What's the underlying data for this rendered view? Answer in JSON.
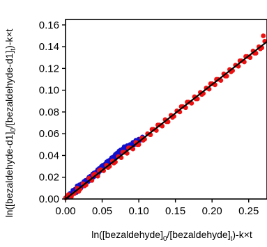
{
  "chart_data": {
    "type": "scatter",
    "title": "",
    "xlabel_parts": [
      "ln([bezaldehyde]",
      "0",
      "/[bezaldehyde]",
      "t",
      ")-k×t"
    ],
    "ylabel_parts": [
      "ln([bezaldehyde-d1]",
      "0",
      "/[bezaldehyde-d1]",
      "t",
      ")-k×t"
    ],
    "xlim": [
      0,
      0.275
    ],
    "ylim": [
      0,
      0.165
    ],
    "x_ticks": [
      0.0,
      0.05,
      0.1,
      0.15,
      0.2,
      0.25
    ],
    "x_tick_labels": [
      "0.00",
      "0.05",
      "0.10",
      "0.15",
      "0.20",
      "0.25"
    ],
    "y_ticks": [
      0.0,
      0.02,
      0.04,
      0.06,
      0.08,
      0.1,
      0.12,
      0.14,
      0.16
    ],
    "y_tick_labels": [
      "0.00",
      "0.02",
      "0.04",
      "0.06",
      "0.08",
      "0.10",
      "0.12",
      "0.14",
      "0.16"
    ],
    "grid": false,
    "fit_line": {
      "slope": 0.526,
      "intercept": 0.0,
      "color": "#000000"
    },
    "series": [
      {
        "color": "#1010cc",
        "x": [
          0.003,
          0.006,
          0.008,
          0.01,
          0.012,
          0.013,
          0.015,
          0.016,
          0.018,
          0.019,
          0.02,
          0.021,
          0.022,
          0.024,
          0.025,
          0.026,
          0.027,
          0.028,
          0.03,
          0.031,
          0.032,
          0.033,
          0.034,
          0.036,
          0.037,
          0.038,
          0.039,
          0.04,
          0.042,
          0.043,
          0.044,
          0.045,
          0.046,
          0.048,
          0.049,
          0.05,
          0.051,
          0.052,
          0.054,
          0.055,
          0.056,
          0.057,
          0.058,
          0.06,
          0.061,
          0.062,
          0.063,
          0.064,
          0.066,
          0.067,
          0.068,
          0.069,
          0.07,
          0.072,
          0.073,
          0.074,
          0.075,
          0.076,
          0.078,
          0.079,
          0.08,
          0.082,
          0.084,
          0.086,
          0.088,
          0.09,
          0.092,
          0.094,
          0.096,
          0.098,
          0.1,
          0.102,
          0.105
        ],
        "y": [
          0.002,
          0.005,
          0.003,
          0.008,
          0.005,
          0.009,
          0.006,
          0.012,
          0.008,
          0.013,
          0.011,
          0.01,
          0.014,
          0.012,
          0.016,
          0.013,
          0.017,
          0.015,
          0.018,
          0.016,
          0.02,
          0.017,
          0.021,
          0.019,
          0.023,
          0.02,
          0.024,
          0.021,
          0.025,
          0.023,
          0.027,
          0.024,
          0.028,
          0.026,
          0.03,
          0.027,
          0.031,
          0.029,
          0.032,
          0.03,
          0.034,
          0.031,
          0.035,
          0.033,
          0.036,
          0.034,
          0.038,
          0.035,
          0.039,
          0.037,
          0.041,
          0.038,
          0.042,
          0.04,
          0.044,
          0.041,
          0.045,
          0.043,
          0.046,
          0.044,
          0.048,
          0.045,
          0.049,
          0.047,
          0.05,
          0.048,
          0.052,
          0.05,
          0.054,
          0.052,
          0.055,
          0.054,
          0.057
        ]
      },
      {
        "color": "#ee1111",
        "x": [
          0.0,
          0.004,
          0.008,
          0.012,
          0.016,
          0.02,
          0.024,
          0.028,
          0.032,
          0.036,
          0.04,
          0.044,
          0.048,
          0.052,
          0.056,
          0.06,
          0.064,
          0.068,
          0.072,
          0.076,
          0.08,
          0.084,
          0.088,
          0.092,
          0.096,
          0.1,
          0.104,
          0.108,
          0.112,
          0.116,
          0.12,
          0.124,
          0.128,
          0.132,
          0.136,
          0.14,
          0.144,
          0.148,
          0.152,
          0.156,
          0.16,
          0.164,
          0.168,
          0.172,
          0.176,
          0.18,
          0.184,
          0.188,
          0.192,
          0.196,
          0.2,
          0.204,
          0.208,
          0.212,
          0.216,
          0.22,
          0.224,
          0.228,
          0.232,
          0.236,
          0.24,
          0.244,
          0.248,
          0.252,
          0.256,
          0.26,
          0.264,
          0.268,
          0.272,
          0.026,
          0.046,
          0.066,
          0.086,
          0.106,
          0.126,
          0.146,
          0.166,
          0.186,
          0.206,
          0.226,
          0.246,
          0.266,
          0.018,
          0.038,
          0.058,
          0.078,
          0.098,
          0.118,
          0.138,
          0.158,
          0.178,
          0.198,
          0.218,
          0.238,
          0.258,
          0.27
        ],
        "y": [
          0.001,
          0.004,
          0.002,
          0.005,
          0.01,
          0.009,
          0.014,
          0.013,
          0.019,
          0.017,
          0.023,
          0.021,
          0.027,
          0.026,
          0.031,
          0.03,
          0.035,
          0.034,
          0.039,
          0.038,
          0.043,
          0.042,
          0.047,
          0.046,
          0.052,
          0.05,
          0.056,
          0.055,
          0.06,
          0.059,
          0.064,
          0.063,
          0.068,
          0.067,
          0.073,
          0.071,
          0.077,
          0.076,
          0.081,
          0.08,
          0.085,
          0.084,
          0.089,
          0.088,
          0.094,
          0.092,
          0.098,
          0.097,
          0.102,
          0.101,
          0.106,
          0.105,
          0.11,
          0.109,
          0.115,
          0.113,
          0.119,
          0.118,
          0.123,
          0.122,
          0.127,
          0.126,
          0.131,
          0.13,
          0.136,
          0.134,
          0.14,
          0.139,
          0.145,
          0.012,
          0.026,
          0.033,
          0.047,
          0.054,
          0.068,
          0.075,
          0.089,
          0.096,
          0.11,
          0.117,
          0.131,
          0.138,
          0.007,
          0.022,
          0.029,
          0.043,
          0.05,
          0.064,
          0.071,
          0.085,
          0.092,
          0.106,
          0.113,
          0.127,
          0.134,
          0.15
        ]
      }
    ]
  }
}
